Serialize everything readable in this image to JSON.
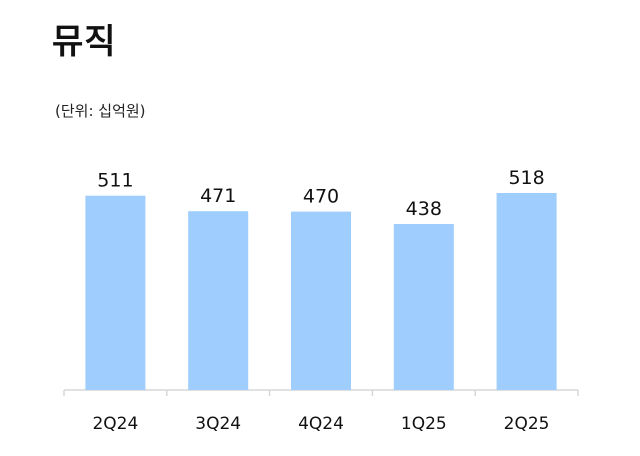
{
  "chart_data": {
    "type": "bar",
    "title": "뮤직",
    "subtitle": "(단위: 십억원)",
    "categories": [
      "2Q24",
      "3Q24",
      "4Q24",
      "1Q25",
      "2Q25"
    ],
    "values": [
      511,
      471,
      470,
      438,
      518
    ],
    "value_labels": [
      "511",
      "471",
      "470",
      "438",
      "518"
    ],
    "xlabel": "",
    "ylabel": "",
    "ylim": [
      0,
      530
    ],
    "grid": false,
    "legend": "none",
    "bar_color": "#9fcdfd"
  }
}
